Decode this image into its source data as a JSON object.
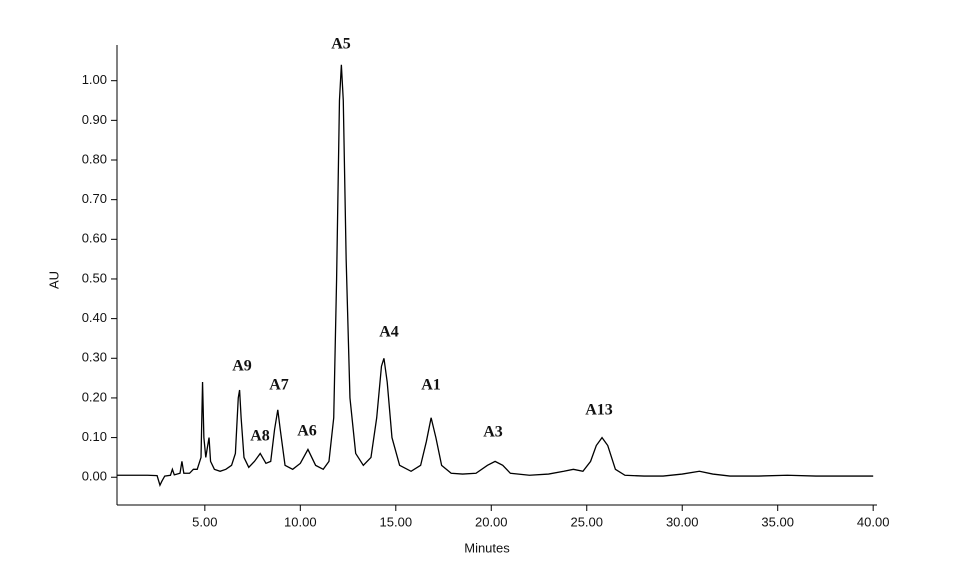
{
  "chart_data": {
    "type": "line",
    "x_label": "Minutes",
    "y_label": "AU",
    "xlim": [
      0.4,
      40.2
    ],
    "ylim": [
      -0.07,
      1.09
    ],
    "xticks": [
      {
        "value": 5,
        "label": "5.00"
      },
      {
        "value": 10,
        "label": "10.00"
      },
      {
        "value": 15,
        "label": "15.00"
      },
      {
        "value": 20,
        "label": "20.00"
      },
      {
        "value": 25,
        "label": "25.00"
      },
      {
        "value": 30,
        "label": "30.00"
      },
      {
        "value": 35,
        "label": "35.00"
      },
      {
        "value": 40,
        "label": "40.00"
      }
    ],
    "yticks": [
      {
        "value": 0,
        "label": "0.00"
      },
      {
        "value": 0.1,
        "label": "0.10"
      },
      {
        "value": 0.2,
        "label": "0.20"
      },
      {
        "value": 0.3,
        "label": "0.30"
      },
      {
        "value": 0.4,
        "label": "0.40"
      },
      {
        "value": 0.5,
        "label": "0.50"
      },
      {
        "value": 0.6,
        "label": "0.60"
      },
      {
        "value": 0.7,
        "label": "0.70"
      },
      {
        "value": 0.8,
        "label": "0.80"
      },
      {
        "value": 0.9,
        "label": "0.90"
      },
      {
        "value": 1.0,
        "label": "1.00"
      }
    ],
    "annotations": [
      "A5",
      "A9",
      "A8",
      "A7",
      "A6",
      "A4",
      "A1",
      "A3",
      "A13"
    ],
    "color": "#000000",
    "x": [
      0.4,
      1.0,
      2.0,
      2.5,
      2.65,
      2.75,
      2.9,
      3.2,
      3.3,
      3.4,
      3.7,
      3.8,
      3.9,
      4.2,
      4.4,
      4.6,
      4.8,
      4.88,
      4.95,
      5.05,
      5.15,
      5.22,
      5.3,
      5.5,
      5.8,
      6.1,
      6.4,
      6.6,
      6.75,
      6.82,
      6.9,
      7.05,
      7.3,
      7.6,
      7.9,
      8.2,
      8.45,
      8.65,
      8.82,
      8.95,
      9.2,
      9.6,
      10.0,
      10.4,
      10.8,
      11.2,
      11.5,
      11.75,
      11.9,
      12.05,
      12.15,
      12.25,
      12.4,
      12.6,
      12.9,
      13.3,
      13.7,
      14.0,
      14.25,
      14.38,
      14.55,
      14.8,
      15.2,
      15.8,
      16.3,
      16.6,
      16.85,
      17.1,
      17.4,
      17.9,
      18.5,
      19.2,
      19.8,
      20.2,
      20.6,
      21.0,
      22.0,
      23.0,
      23.8,
      24.3,
      24.8,
      25.2,
      25.5,
      25.8,
      26.1,
      26.5,
      27.0,
      28.0,
      29.0,
      30.0,
      30.9,
      31.6,
      32.5,
      34.0,
      35.5,
      37.0,
      40.0
    ],
    "values": [
      0.005,
      0.005,
      0.005,
      0.004,
      -0.02,
      -0.01,
      0.003,
      0.005,
      0.02,
      0.006,
      0.01,
      0.04,
      0.01,
      0.01,
      0.02,
      0.02,
      0.05,
      0.24,
      0.1,
      0.05,
      0.08,
      0.1,
      0.04,
      0.02,
      0.015,
      0.02,
      0.03,
      0.06,
      0.2,
      0.22,
      0.15,
      0.05,
      0.025,
      0.04,
      0.06,
      0.035,
      0.04,
      0.12,
      0.17,
      0.12,
      0.03,
      0.02,
      0.035,
      0.07,
      0.03,
      0.02,
      0.04,
      0.15,
      0.5,
      0.95,
      1.04,
      0.95,
      0.55,
      0.2,
      0.06,
      0.03,
      0.05,
      0.15,
      0.28,
      0.3,
      0.24,
      0.1,
      0.03,
      0.015,
      0.03,
      0.09,
      0.15,
      0.1,
      0.03,
      0.01,
      0.008,
      0.01,
      0.03,
      0.04,
      0.03,
      0.01,
      0.005,
      0.008,
      0.015,
      0.02,
      0.015,
      0.04,
      0.08,
      0.1,
      0.08,
      0.02,
      0.005,
      0.003,
      0.003,
      0.008,
      0.015,
      0.008,
      0.003,
      0.003,
      0.005,
      0.003,
      0.003
    ]
  }
}
